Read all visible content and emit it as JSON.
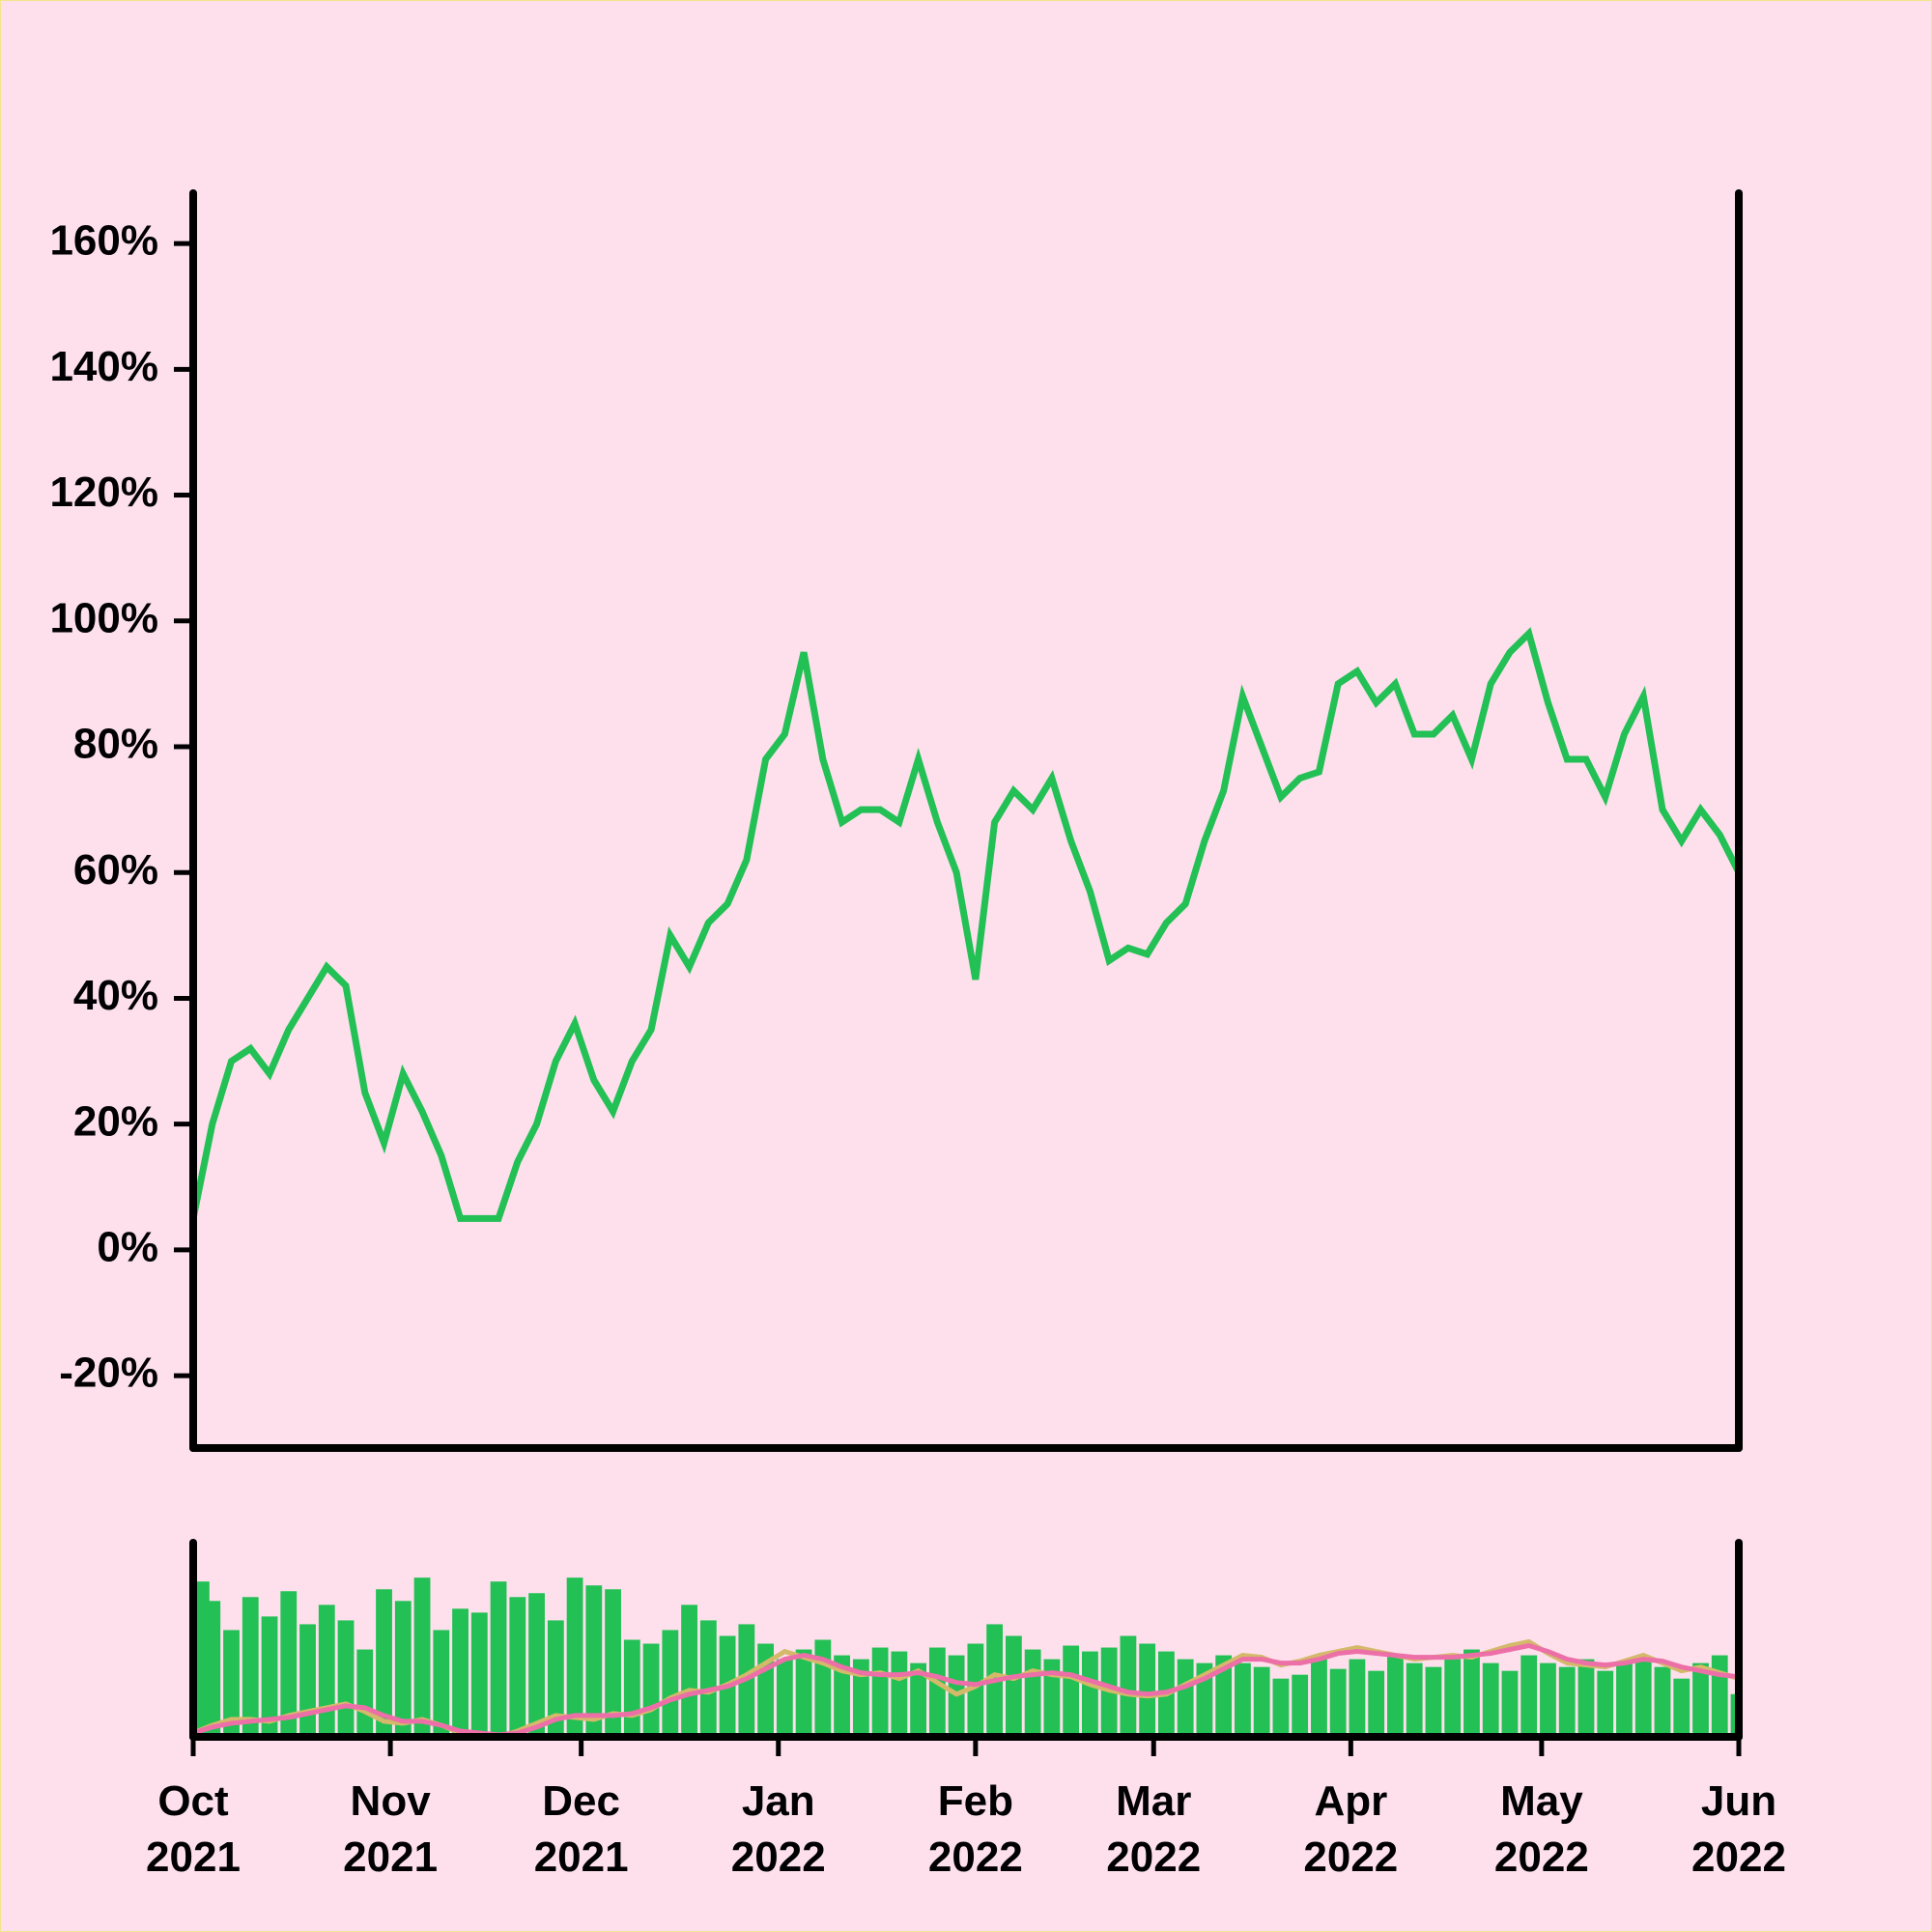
{
  "chart_data": [
    {
      "type": "line",
      "color": "#22c055",
      "x": [
        0,
        3,
        6,
        9,
        12,
        15,
        18,
        21,
        24,
        27,
        30,
        33,
        36,
        39,
        42,
        45,
        48,
        51,
        54,
        57,
        60,
        63,
        66,
        69,
        72,
        75,
        78,
        81,
        84,
        87,
        90,
        93,
        96,
        99,
        102,
        105,
        108,
        111,
        114,
        117,
        120,
        123,
        126,
        129,
        132,
        135,
        138,
        141,
        144,
        147,
        150,
        153,
        156,
        159,
        162,
        165,
        168,
        171,
        174,
        177,
        180,
        183,
        186,
        189,
        192,
        195,
        198,
        201,
        204,
        207,
        210,
        213,
        216,
        219,
        222,
        225,
        228,
        231,
        234,
        237,
        240,
        243
      ],
      "values": [
        5,
        20,
        30,
        32,
        28,
        35,
        40,
        45,
        42,
        25,
        17,
        28,
        22,
        15,
        5,
        5,
        5,
        14,
        20,
        30,
        36,
        27,
        22,
        30,
        35,
        50,
        45,
        52,
        55,
        62,
        78,
        82,
        95,
        78,
        68,
        70,
        70,
        68,
        78,
        68,
        60,
        43,
        68,
        73,
        70,
        75,
        65,
        57,
        46,
        48,
        47,
        52,
        55,
        65,
        73,
        88,
        80,
        72,
        75,
        76,
        90,
        92,
        87,
        90,
        82,
        82,
        85,
        78,
        90,
        95,
        98,
        87,
        78,
        78,
        72,
        82,
        88,
        70,
        65,
        70,
        66,
        60
      ],
      "xlim": [
        0,
        243
      ],
      "ylim": [
        -31.5,
        168
      ],
      "yticks": [
        {
          "value": -20,
          "label": "-20%"
        },
        {
          "value": 0,
          "label": "0%"
        },
        {
          "value": 20,
          "label": "20%"
        },
        {
          "value": 40,
          "label": "40%"
        },
        {
          "value": 60,
          "label": "60%"
        },
        {
          "value": 80,
          "label": "80%"
        },
        {
          "value": 100,
          "label": "100%"
        },
        {
          "value": 120,
          "label": "120%"
        },
        {
          "value": 140,
          "label": "140%"
        },
        {
          "value": 160,
          "label": "160%"
        }
      ]
    },
    {
      "type": "bar",
      "x": [
        0,
        3,
        6,
        9,
        12,
        15,
        18,
        21,
        24,
        27,
        30,
        33,
        36,
        39,
        42,
        45,
        48,
        51,
        54,
        57,
        60,
        63,
        66,
        69,
        72,
        75,
        78,
        81,
        84,
        87,
        90,
        93,
        96,
        99,
        102,
        105,
        108,
        111,
        114,
        117,
        120,
        123,
        126,
        129,
        132,
        135,
        138,
        141,
        144,
        147,
        150,
        153,
        156,
        159,
        162,
        165,
        168,
        171,
        174,
        177,
        180,
        183,
        186,
        189,
        192,
        195,
        198,
        201,
        204,
        207,
        210,
        213,
        216,
        219,
        222,
        225,
        228,
        231,
        234,
        237,
        240,
        243
      ],
      "series": [
        {
          "type": "bar",
          "color": "#22c055",
          "values": [
            80,
            70,
            55,
            72,
            62,
            75,
            58,
            68,
            60,
            45,
            76,
            70,
            82,
            55,
            66,
            64,
            80,
            72,
            74,
            60,
            82,
            78,
            76,
            50,
            48,
            55,
            68,
            60,
            52,
            58,
            48,
            40,
            45,
            50,
            42,
            40,
            46,
            44,
            38,
            46,
            42,
            48,
            58,
            52,
            45,
            40,
            47,
            44,
            46,
            52,
            48,
            44,
            40,
            38,
            42,
            38,
            36,
            30,
            32,
            40,
            35,
            40,
            34,
            42,
            38,
            36,
            40,
            45,
            38,
            34,
            42,
            38,
            36,
            40,
            34,
            38,
            40,
            36,
            30,
            38,
            42,
            22
          ]
        },
        {
          "type": "line",
          "color": "#d4b96a",
          "values": [
            2,
            6,
            9,
            9,
            8,
            11,
            13,
            15,
            17,
            13,
            8,
            7,
            9,
            6,
            2,
            1,
            0,
            3,
            7,
            11,
            10,
            9,
            12,
            11,
            14,
            20,
            24,
            23,
            27,
            32,
            38,
            44,
            41,
            38,
            34,
            32,
            33,
            30,
            34,
            28,
            22,
            26,
            32,
            30,
            34,
            32,
            31,
            27,
            24,
            22,
            21,
            22,
            27,
            32,
            37,
            42,
            41,
            37,
            39,
            42,
            44,
            46,
            44,
            42,
            40,
            41,
            42,
            41,
            44,
            47,
            49,
            43,
            38,
            37,
            36,
            39,
            42,
            38,
            34,
            36,
            33,
            30
          ]
        },
        {
          "type": "line",
          "color": "#ec6fa8",
          "values": [
            2,
            5,
            7,
            8,
            9,
            10,
            12,
            14,
            16,
            15,
            11,
            8,
            8,
            6,
            3,
            2,
            1,
            2,
            5,
            9,
            11,
            11,
            11,
            12,
            15,
            19,
            22,
            24,
            26,
            30,
            35,
            40,
            42,
            40,
            36,
            33,
            32,
            32,
            33,
            31,
            28,
            27,
            29,
            31,
            32,
            33,
            32,
            29,
            26,
            23,
            22,
            23,
            26,
            30,
            35,
            40,
            40,
            38,
            38,
            40,
            43,
            44,
            43,
            42,
            41,
            41,
            41,
            42,
            43,
            45,
            47,
            44,
            40,
            38,
            37,
            38,
            40,
            39,
            36,
            34,
            32,
            31
          ]
        }
      ],
      "xlim": [
        0,
        243
      ],
      "ylim": [
        0,
        100
      ],
      "xticks": [
        {
          "value": 0,
          "label": "Oct\n2021"
        },
        {
          "value": 31,
          "label": "Nov\n2021"
        },
        {
          "value": 61,
          "label": "Dec\n2021"
        },
        {
          "value": 92,
          "label": "Jan\n2022"
        },
        {
          "value": 123,
          "label": "Feb\n2022"
        },
        {
          "value": 151,
          "label": "Mar\n2022"
        },
        {
          "value": 182,
          "label": "Apr\n2022"
        },
        {
          "value": 212,
          "label": "May\n2022"
        },
        {
          "value": 243,
          "label": "Jun\n2022"
        }
      ]
    }
  ]
}
